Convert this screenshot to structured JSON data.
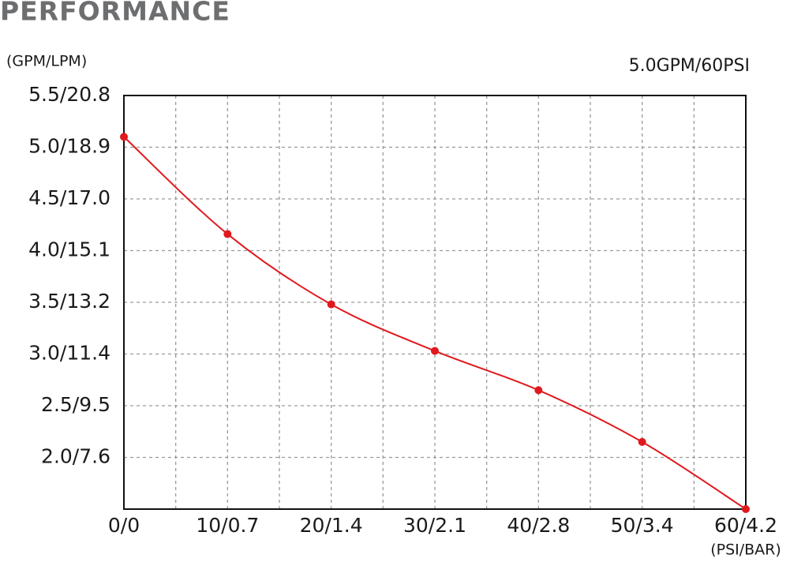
{
  "chart_data": {
    "type": "line",
    "title": "PERFORMANCE",
    "y_label": "(GPM/LPM)",
    "x_label": "(PSI/BAR)",
    "x": [
      0,
      10,
      20,
      30,
      40,
      50,
      60
    ],
    "series": [
      {
        "name": "5.0GPM/60PSI",
        "color": "#e0191e",
        "values": [
          5.1,
          4.16,
          3.48,
          3.03,
          2.65,
          2.15,
          1.5
        ]
      }
    ],
    "xlim": [
      0,
      60
    ],
    "xticks": [
      {
        "value": 0,
        "label": "0/0"
      },
      {
        "value": 10,
        "label": "10/0.7"
      },
      {
        "value": 20,
        "label": "20/1.4"
      },
      {
        "value": 30,
        "label": "30/2.1"
      },
      {
        "value": 40,
        "label": "40/2.8"
      },
      {
        "value": 50,
        "label": "50/3.4"
      },
      {
        "value": 60,
        "label": "60/4.2"
      }
    ],
    "x_minor_ticks": [
      5,
      15,
      25,
      35,
      45,
      55
    ],
    "ylim": [
      1.5,
      5.5
    ],
    "yticks": [
      {
        "value": 5.5,
        "label": "5.5/20.8"
      },
      {
        "value": 5.0,
        "label": "5.0/18.9"
      },
      {
        "value": 4.5,
        "label": "4.5/17.0"
      },
      {
        "value": 4.0,
        "label": "4.0/15.1"
      },
      {
        "value": 3.5,
        "label": "3.5/13.2"
      },
      {
        "value": 3.0,
        "label": "3.0/11.4"
      },
      {
        "value": 2.5,
        "label": "2.5/9.5"
      },
      {
        "value": 2.0,
        "label": "2.0/7.6"
      }
    ],
    "grid": true,
    "smooth": true
  }
}
